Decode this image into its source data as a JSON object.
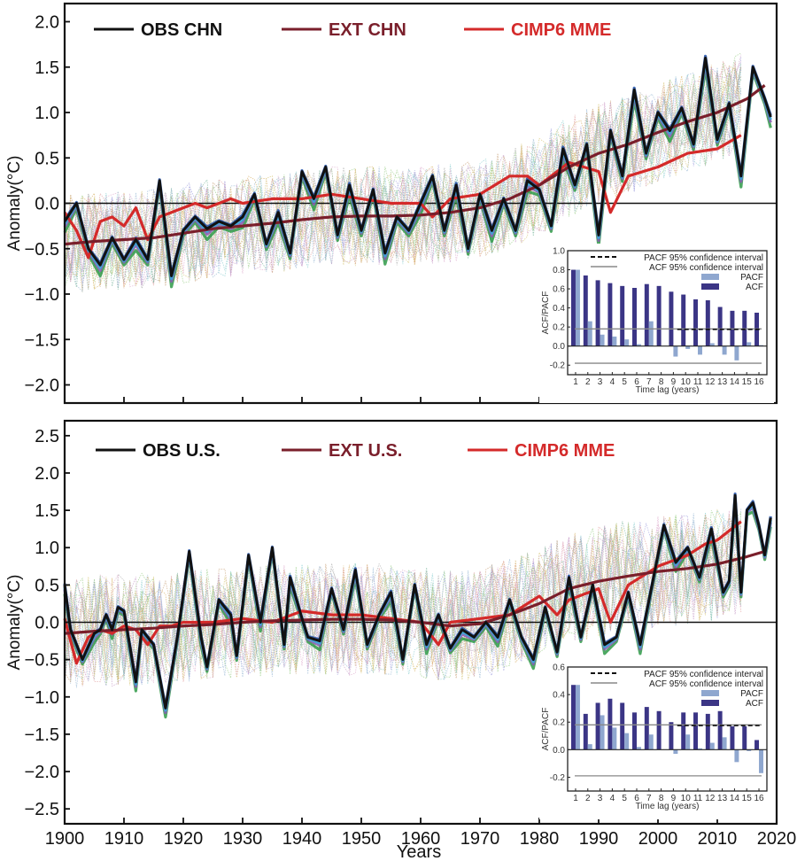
{
  "chart_data": [
    {
      "type": "line",
      "panel": "top",
      "title": "",
      "xlabel": "",
      "ylabel": "Anomaly(°C)",
      "xlim": [
        1900,
        2020
      ],
      "ylim": [
        -2.2,
        2.2
      ],
      "yticks": [
        -2.0,
        -1.5,
        -1.0,
        -0.5,
        0.0,
        0.5,
        1.0,
        1.5,
        2.0
      ],
      "ytick_labels": [
        "−2.0",
        "−1.5",
        "−1.0",
        "−0.5",
        "0.0",
        "0.5",
        "1.0",
        "1.5",
        "2.0"
      ],
      "xticks": [
        1900,
        1910,
        1920,
        1930,
        1940,
        1950,
        1960,
        1970,
        1980,
        1990,
        2000,
        2010,
        2020
      ],
      "show_xtick_labels": false,
      "zero_line": true,
      "legend": [
        {
          "label": "OBS CHN",
          "color": "#111111"
        },
        {
          "label": "EXT CHN",
          "color": "#7a1f2b"
        },
        {
          "label": "CIMP6 MME",
          "color": "#d42a2a"
        }
      ],
      "legend_position": "top-left",
      "ensemble_band": {
        "description": "many thin dotted multicolored CMIP6 member runs",
        "spread": 0.55
      },
      "series": [
        {
          "name": "OBS CHN",
          "color": "#111111",
          "x": [
            1900,
            1902,
            1904,
            1906,
            1908,
            1910,
            1912,
            1914,
            1916,
            1918,
            1920,
            1922,
            1924,
            1926,
            1928,
            1930,
            1932,
            1934,
            1936,
            1938,
            1940,
            1942,
            1944,
            1946,
            1948,
            1950,
            1952,
            1954,
            1956,
            1958,
            1960,
            1962,
            1964,
            1966,
            1968,
            1970,
            1972,
            1974,
            1976,
            1978,
            1980,
            1982,
            1984,
            1986,
            1988,
            1990,
            1992,
            1994,
            1996,
            1998,
            2000,
            2002,
            2004,
            2006,
            2008,
            2010,
            2012,
            2014,
            2016,
            2018,
            2019
          ],
          "y": [
            -0.2,
            0.0,
            -0.5,
            -0.68,
            -0.38,
            -0.62,
            -0.4,
            -0.62,
            0.25,
            -0.8,
            -0.3,
            -0.15,
            -0.28,
            -0.2,
            -0.25,
            -0.15,
            0.1,
            -0.45,
            -0.1,
            -0.55,
            0.35,
            0.05,
            0.4,
            -0.35,
            0.2,
            -0.3,
            0.15,
            -0.55,
            -0.15,
            -0.3,
            0.0,
            0.3,
            -0.3,
            0.2,
            -0.5,
            0.1,
            -0.3,
            0.05,
            -0.3,
            0.25,
            0.15,
            -0.25,
            0.6,
            0.2,
            0.65,
            -0.35,
            0.8,
            0.3,
            1.25,
            0.55,
            1.0,
            0.8,
            1.05,
            0.65,
            1.6,
            0.7,
            1.1,
            0.3,
            1.5,
            1.15,
            0.95
          ]
        },
        {
          "name": "EXT CHN",
          "color": "#7a1f2b",
          "x": [
            1900,
            1905,
            1910,
            1915,
            1920,
            1925,
            1930,
            1935,
            1940,
            1945,
            1950,
            1955,
            1960,
            1965,
            1970,
            1975,
            1980,
            1985,
            1990,
            1995,
            2000,
            2005,
            2010,
            2015,
            2018
          ],
          "y": [
            -0.45,
            -0.42,
            -0.4,
            -0.38,
            -0.33,
            -0.28,
            -0.25,
            -0.22,
            -0.18,
            -0.15,
            -0.14,
            -0.14,
            -0.13,
            -0.1,
            -0.05,
            0.05,
            0.2,
            0.4,
            0.55,
            0.65,
            0.78,
            0.9,
            1.0,
            1.15,
            1.3
          ]
        },
        {
          "name": "CIMP6 MME",
          "color": "#d42a2a",
          "x": [
            1900,
            1902,
            1904,
            1906,
            1908,
            1910,
            1912,
            1914,
            1916,
            1918,
            1920,
            1922,
            1924,
            1926,
            1928,
            1930,
            1935,
            1940,
            1945,
            1950,
            1955,
            1960,
            1962,
            1965,
            1970,
            1975,
            1978,
            1980,
            1985,
            1990,
            1992,
            1995,
            2000,
            2005,
            2010,
            2014
          ],
          "y": [
            -0.1,
            -0.3,
            -0.6,
            -0.2,
            -0.15,
            -0.25,
            -0.05,
            -0.4,
            -0.15,
            -0.1,
            -0.05,
            0.0,
            -0.05,
            0.0,
            0.05,
            0.0,
            0.05,
            0.05,
            0.1,
            0.05,
            0.0,
            0.0,
            -0.15,
            0.05,
            0.1,
            0.3,
            0.3,
            0.2,
            0.45,
            0.35,
            -0.1,
            0.3,
            0.4,
            0.55,
            0.6,
            0.75
          ]
        }
      ],
      "inset": {
        "type": "bar",
        "xlabel": "Time lag (years)",
        "ylabel": "ACF/PACF",
        "ylim": [
          -0.3,
          1.0
        ],
        "yticks": [
          -0.2,
          0.0,
          0.2,
          0.4,
          0.6,
          0.8,
          1.0
        ],
        "ytick_labels": [
          "-0.2",
          "0.0",
          "0.2",
          "0.4",
          "0.6",
          "0.8",
          "1.0"
        ],
        "categories": [
          "1",
          "2",
          "3",
          "4",
          "5",
          "6",
          "7",
          "8",
          "9",
          "10",
          "11",
          "12",
          "13",
          "14",
          "15",
          "16"
        ],
        "series": [
          {
            "name": "ACF",
            "color": "#3b3585",
            "values": [
              0.8,
              0.74,
              0.69,
              0.66,
              0.63,
              0.61,
              0.65,
              0.63,
              0.57,
              0.54,
              0.49,
              0.48,
              0.41,
              0.37,
              0.37,
              0.35
            ]
          },
          {
            "name": "PACF",
            "color": "#8fa7cf",
            "values": [
              0.8,
              0.26,
              0.12,
              0.1,
              0.07,
              0.02,
              0.26,
              0.0,
              -0.11,
              -0.03,
              -0.09,
              0.03,
              -0.09,
              -0.15,
              0.04,
              0.01
            ]
          }
        ],
        "pacf_ci": 0.175,
        "acf_ci": [
          -0.18,
          0.18
        ],
        "legend": [
          {
            "label": "PACF 95% confidence interval",
            "style": "dashed",
            "color": "#111111"
          },
          {
            "label": "ACF 95% confidence interval",
            "style": "solid",
            "color": "#888888"
          },
          {
            "label": "PACF",
            "style": "patch",
            "color": "#8fa7cf"
          },
          {
            "label": "ACF",
            "style": "patch",
            "color": "#3b3585"
          }
        ],
        "legend_position": "top-right"
      }
    },
    {
      "type": "line",
      "panel": "bottom",
      "title": "",
      "xlabel": "Years",
      "ylabel": "Anomaly(°C)",
      "xlim": [
        1900,
        2020
      ],
      "ylim": [
        -2.7,
        2.7
      ],
      "yticks": [
        -2.5,
        -2.0,
        -1.5,
        -1.0,
        -0.5,
        0.0,
        0.5,
        1.0,
        1.5,
        2.0,
        2.5
      ],
      "ytick_labels": [
        "−2.5",
        "−2.0",
        "−1.5",
        "−1.0",
        "−0.5",
        "0.0",
        "0.5",
        "1.0",
        "1.5",
        "2.0",
        "2.5"
      ],
      "xticks": [
        1900,
        1910,
        1920,
        1930,
        1940,
        1950,
        1960,
        1970,
        1980,
        1990,
        2000,
        2010,
        2020
      ],
      "xtick_labels": [
        "1900",
        "1910",
        "1920",
        "1930",
        "1940",
        "1950",
        "1960",
        "1970",
        "1980",
        "1990",
        "2000",
        "2010",
        "2020"
      ],
      "zero_line": true,
      "legend": [
        {
          "label": "OBS U.S.",
          "color": "#111111"
        },
        {
          "label": "EXT U.S.",
          "color": "#7a1f2b"
        },
        {
          "label": "CIMP6 MME",
          "color": "#d42a2a"
        }
      ],
      "legend_position": "top-left",
      "ensemble_band": {
        "description": "many thin dotted multicolored CMIP6 member runs",
        "spread": 0.75
      },
      "series": [
        {
          "name": "OBS U.S.",
          "color": "#111111",
          "x": [
            1900,
            1901,
            1903,
            1905,
            1906,
            1907,
            1908,
            1909,
            1910,
            1912,
            1913,
            1915,
            1917,
            1919,
            1921,
            1923,
            1924,
            1926,
            1928,
            1929,
            1931,
            1933,
            1935,
            1937,
            1938,
            1940,
            1941,
            1943,
            1945,
            1947,
            1949,
            1951,
            1953,
            1955,
            1957,
            1959,
            1961,
            1963,
            1965,
            1967,
            1969,
            1971,
            1973,
            1975,
            1977,
            1979,
            1981,
            1983,
            1985,
            1987,
            1989,
            1991,
            1993,
            1995,
            1997,
            1999,
            2001,
            2003,
            2005,
            2007,
            2009,
            2011,
            2012,
            2013,
            2014,
            2015,
            2016,
            2017,
            2018,
            2019
          ],
          "y": [
            0.5,
            -0.1,
            -0.5,
            -0.15,
            -0.1,
            0.1,
            -0.1,
            0.2,
            0.15,
            -0.8,
            -0.1,
            -0.3,
            -1.15,
            -0.2,
            0.95,
            -0.2,
            -0.6,
            0.3,
            0.1,
            -0.45,
            0.9,
            0.0,
            1.0,
            -0.3,
            0.6,
            0.05,
            -0.2,
            -0.25,
            0.45,
            -0.1,
            0.7,
            -0.3,
            0.1,
            0.4,
            -0.5,
            0.5,
            -0.3,
            0.1,
            -0.35,
            -0.1,
            -0.2,
            0.0,
            -0.2,
            0.3,
            -0.2,
            -0.5,
            0.2,
            -0.4,
            0.6,
            -0.2,
            0.5,
            -0.3,
            -0.2,
            0.4,
            -0.3,
            0.5,
            1.3,
            0.8,
            1.0,
            0.6,
            1.25,
            0.4,
            0.55,
            1.7,
            0.4,
            1.5,
            1.6,
            1.3,
            0.9,
            1.4
          ]
        },
        {
          "name": "EXT U.S.",
          "color": "#7a1f2b",
          "x": [
            1900,
            1905,
            1910,
            1915,
            1920,
            1925,
            1930,
            1935,
            1940,
            1945,
            1950,
            1955,
            1960,
            1965,
            1970,
            1975,
            1980,
            1985,
            1990,
            1995,
            2000,
            2005,
            2010,
            2015,
            2018
          ],
          "y": [
            -0.15,
            -0.12,
            -0.1,
            -0.08,
            -0.05,
            -0.03,
            0.0,
            0.02,
            0.03,
            0.04,
            0.04,
            0.03,
            0.0,
            -0.05,
            -0.02,
            0.1,
            0.25,
            0.45,
            0.55,
            0.62,
            0.68,
            0.72,
            0.78,
            0.88,
            0.95
          ]
        },
        {
          "name": "CIMP6 MME",
          "color": "#d42a2a",
          "x": [
            1900,
            1902,
            1904,
            1906,
            1908,
            1910,
            1912,
            1914,
            1916,
            1918,
            1920,
            1925,
            1930,
            1935,
            1940,
            1945,
            1950,
            1955,
            1960,
            1963,
            1965,
            1970,
            1975,
            1980,
            1983,
            1985,
            1990,
            1992,
            1995,
            2000,
            2005,
            2008,
            2010,
            2014
          ],
          "y": [
            0.05,
            -0.55,
            -0.2,
            -0.1,
            -0.15,
            -0.05,
            -0.1,
            -0.3,
            -0.05,
            -0.05,
            0.0,
            0.0,
            0.05,
            0.0,
            0.15,
            0.1,
            0.1,
            0.05,
            0.0,
            -0.3,
            0.0,
            0.05,
            0.1,
            0.35,
            0.1,
            0.3,
            0.45,
            0.0,
            0.5,
            0.75,
            0.9,
            1.05,
            1.1,
            1.35
          ]
        }
      ],
      "inset": {
        "type": "bar",
        "xlabel": "Time lag (years)",
        "ylabel": "ACF/PACF",
        "ylim": [
          -0.3,
          0.6
        ],
        "yticks": [
          -0.2,
          0.0,
          0.2,
          0.4,
          0.6
        ],
        "ytick_labels": [
          "-0.2",
          "0.0",
          "0.2",
          "0.4",
          "0.6"
        ],
        "categories": [
          "1",
          "2",
          "3",
          "4",
          "5",
          "6",
          "7",
          "8",
          "9",
          "10",
          "11",
          "12",
          "13",
          "14",
          "15",
          "16"
        ],
        "series": [
          {
            "name": "ACF",
            "color": "#3b3585",
            "values": [
              0.47,
              0.26,
              0.34,
              0.37,
              0.34,
              0.27,
              0.31,
              0.28,
              0.2,
              0.27,
              0.27,
              0.26,
              0.28,
              0.17,
              0.17,
              0.07
            ]
          },
          {
            "name": "PACF",
            "color": "#8fa7cf",
            "values": [
              0.47,
              0.04,
              0.25,
              0.16,
              0.12,
              0.02,
              0.11,
              0.0,
              -0.03,
              0.11,
              0.01,
              0.05,
              0.09,
              -0.09,
              -0.01,
              -0.17
            ]
          }
        ],
        "pacf_ci": 0.175,
        "acf_ci": [
          -0.19,
          0.18
        ],
        "legend": [
          {
            "label": "PACF 95% confidence interval",
            "style": "dashed",
            "color": "#111111"
          },
          {
            "label": "ACF 95% confidence interval",
            "style": "solid",
            "color": "#888888"
          },
          {
            "label": "PACF",
            "style": "patch",
            "color": "#8fa7cf"
          },
          {
            "label": "ACF",
            "style": "patch",
            "color": "#3b3585"
          }
        ],
        "legend_position": "top-right"
      }
    }
  ]
}
